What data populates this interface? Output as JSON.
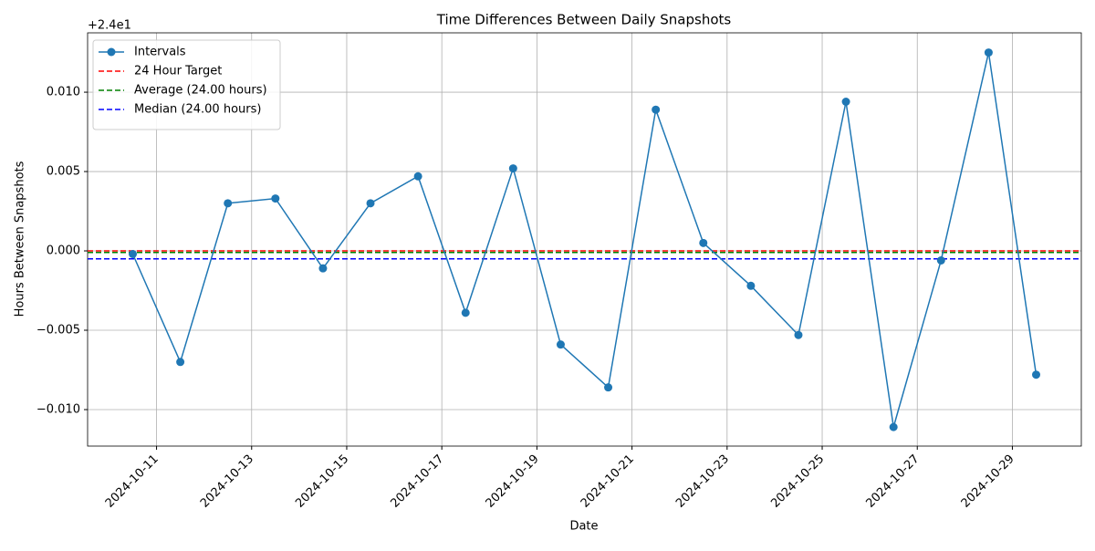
{
  "chart_data": {
    "type": "line",
    "title": "Time Differences Between Daily Snapshots",
    "xlabel": "Date",
    "ylabel": "Hours Between Snapshots",
    "y_offset_label": "+2.4e1",
    "x": [
      "2024-10-10",
      "2024-10-11",
      "2024-10-12",
      "2024-10-13",
      "2024-10-14",
      "2024-10-15",
      "2024-10-16",
      "2024-10-17",
      "2024-10-18",
      "2024-10-19",
      "2024-10-20",
      "2024-10-21",
      "2024-10-22",
      "2024-10-23",
      "2024-10-24",
      "2024-10-25",
      "2024-10-26",
      "2024-10-27",
      "2024-10-28",
      "2024-10-29"
    ],
    "series": [
      {
        "name": "Intervals",
        "color": "#1f77b4",
        "values": [
          -0.0002,
          -0.007,
          0.003,
          0.0033,
          -0.0011,
          0.003,
          0.0047,
          -0.0039,
          0.0052,
          -0.0059,
          -0.0086,
          0.0089,
          0.0005,
          -0.0022,
          -0.0053,
          0.0094,
          -0.0111,
          -0.0006,
          0.0125,
          -0.0078
        ]
      }
    ],
    "hlines": [
      {
        "name": "24 Hour Target",
        "color": "#ff0000",
        "value": 0
      },
      {
        "name": "Average (24.00 hours)",
        "color": "#008000",
        "value": -0.0001
      },
      {
        "name": "Median (24.00 hours)",
        "color": "#0000ff",
        "value": -0.0005
      }
    ],
    "ylim": [
      -0.0123,
      0.01374
    ],
    "yticks": [
      {
        "value": -0.01,
        "label": "−0.010"
      },
      {
        "value": -0.005,
        "label": "−0.005"
      },
      {
        "value": 0,
        "label": "0.000"
      },
      {
        "value": 0.005,
        "label": "0.005"
      },
      {
        "value": 0.01,
        "label": "0.010"
      }
    ],
    "xticks": [
      "2024-10-11",
      "2024-10-13",
      "2024-10-15",
      "2024-10-17",
      "2024-10-19",
      "2024-10-21",
      "2024-10-23",
      "2024-10-25",
      "2024-10-27",
      "2024-10-29"
    ],
    "grid": true,
    "legend": "upper left"
  }
}
